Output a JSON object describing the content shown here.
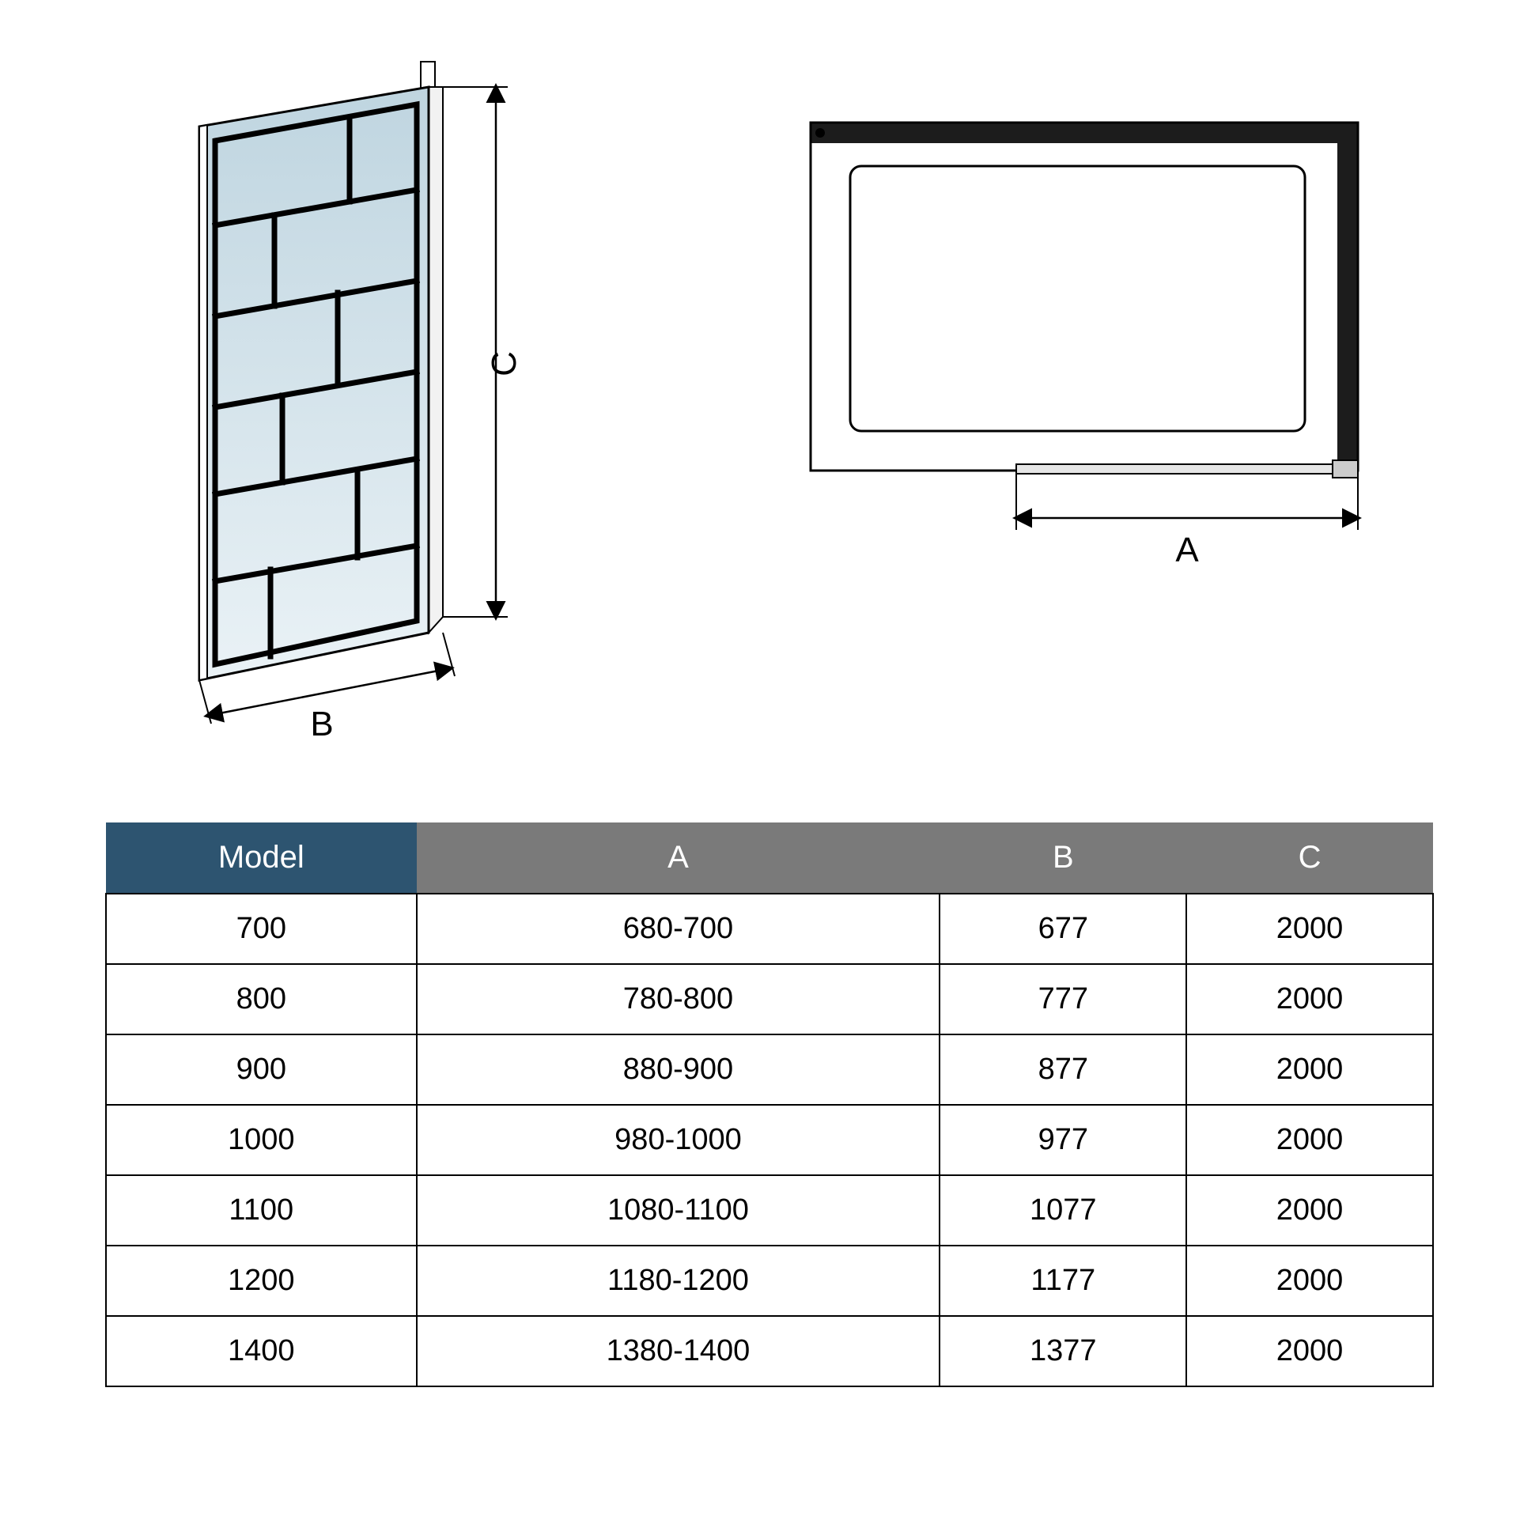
{
  "diagram": {
    "label_B": "B",
    "label_C": "C",
    "label_A": "A",
    "panel_fill": "#bfd5e0",
    "panel_fill_light": "#dce8ee",
    "stroke": "#000000",
    "frame_dark": "#2a2a2a"
  },
  "table": {
    "header_model_bg": "#2d5470",
    "header_dim_bg": "#7a7a7a",
    "columns": [
      "Model",
      "A",
      "B",
      "C"
    ],
    "rows": [
      [
        "700",
        "680-700",
        "677",
        "2000"
      ],
      [
        "800",
        "780-800",
        "777",
        "2000"
      ],
      [
        "900",
        "880-900",
        "877",
        "2000"
      ],
      [
        "1000",
        "980-1000",
        "977",
        "2000"
      ],
      [
        "1100",
        "1080-1100",
        "1077",
        "2000"
      ],
      [
        "1200",
        "1180-1200",
        "1177",
        "2000"
      ],
      [
        "1400",
        "1380-1400",
        "1377",
        "2000"
      ]
    ]
  }
}
